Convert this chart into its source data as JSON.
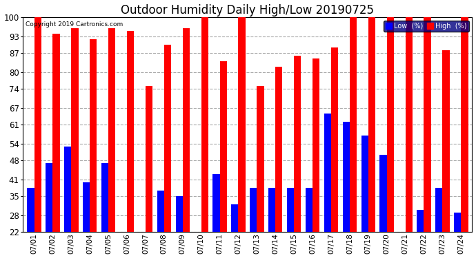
{
  "title": "Outdoor Humidity Daily High/Low 20190725",
  "copyright": "Copyright 2019 Cartronics.com",
  "categories": [
    "07/01",
    "07/02",
    "07/03",
    "07/04",
    "07/05",
    "07/06",
    "07/07",
    "07/08",
    "07/09",
    "07/10",
    "07/11",
    "07/12",
    "07/13",
    "07/14",
    "07/15",
    "07/16",
    "07/17",
    "07/18",
    "07/19",
    "07/20",
    "07/21",
    "07/22",
    "07/23",
    "07/24"
  ],
  "high_values": [
    100,
    94,
    96,
    92,
    96,
    95,
    75,
    90,
    96,
    100,
    84,
    100,
    75,
    82,
    86,
    85,
    89,
    100,
    100,
    100,
    100,
    100,
    88,
    100
  ],
  "low_values": [
    38,
    47,
    53,
    40,
    47,
    22,
    22,
    37,
    35,
    22,
    43,
    32,
    38,
    38,
    38,
    38,
    65,
    62,
    57,
    50,
    22,
    30,
    38,
    29
  ],
  "high_color": "#ff0000",
  "low_color": "#0000ff",
  "bg_color": "#ffffff",
  "grid_color": "#aaaaaa",
  "title_fontsize": 12,
  "ylim_min": 22,
  "ylim_max": 100,
  "yticks": [
    22,
    28,
    35,
    41,
    48,
    54,
    61,
    67,
    74,
    80,
    87,
    93,
    100
  ],
  "legend_low_label": "Low  (%)",
  "legend_high_label": "High  (%)",
  "bar_width": 0.38
}
